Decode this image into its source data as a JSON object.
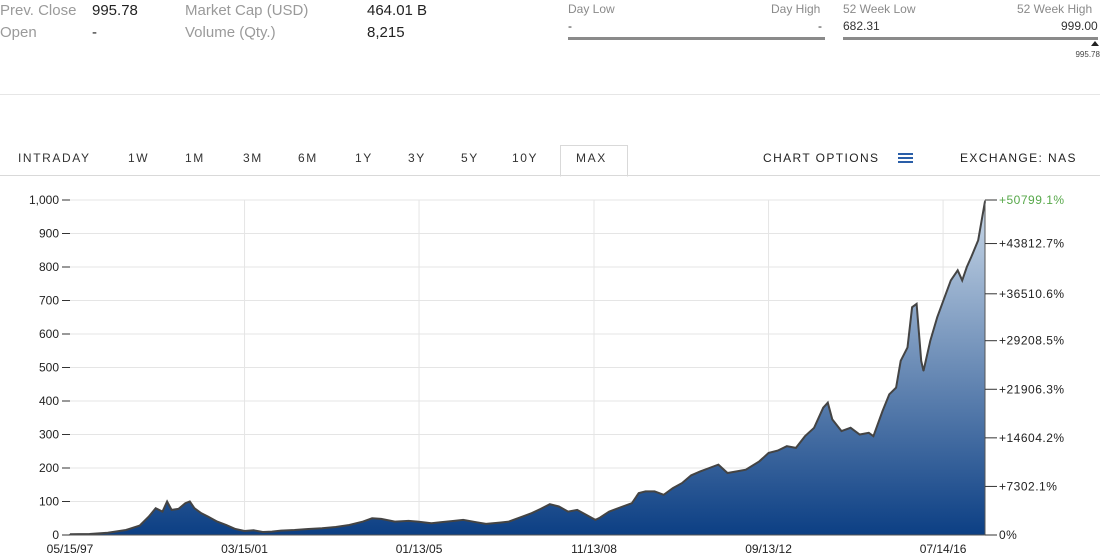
{
  "quote": {
    "prev_close_label": "Prev. Close",
    "prev_close_value": "995.78",
    "open_label": "Open",
    "open_value": "-",
    "market_cap_label": "Market Cap (USD)",
    "market_cap_value": "464.01 B",
    "volume_label": "Volume (Qty.)",
    "volume_value": "8,215"
  },
  "day_range": {
    "low_label": "Day Low",
    "high_label": "Day High",
    "low_value": "-",
    "high_value": "-"
  },
  "week52_range": {
    "low_label": "52 Week Low",
    "high_label": "52 Week High",
    "low_value": "682.31",
    "high_value": "999.00",
    "marker_value": "995.78",
    "marker_fraction": 0.9901
  },
  "tabs": [
    "INTRADAY",
    "1W",
    "1M",
    "3M",
    "6M",
    "1Y",
    "3Y",
    "5Y",
    "10Y",
    "MAX"
  ],
  "active_tab": "MAX",
  "chart_options_label": "CHART OPTIONS",
  "exchange_label": "EXCHANGE: NAS",
  "colors": {
    "area_top": "#c9d8e8",
    "area_bottom": "#0c3f84",
    "line": "#444444",
    "pct_highlight": "#57a84a",
    "grid": "#e5e5e5"
  },
  "chart_data": {
    "type": "area",
    "title": "",
    "xlabel": "",
    "ylabel": "",
    "x_tick_labels": [
      "05/15/97",
      "03/15/01",
      "01/13/05",
      "11/13/08",
      "09/13/12",
      "07/14/16"
    ],
    "x_ticks_years": [
      1997.37,
      2001.2,
      2005.03,
      2008.87,
      2012.7,
      2016.53
    ],
    "y_ticks": [
      0,
      100,
      200,
      300,
      400,
      500,
      600,
      700,
      800,
      900,
      1000
    ],
    "y_tick_labels": [
      "0",
      "100",
      "200",
      "300",
      "400",
      "500",
      "600",
      "700",
      "800",
      "900",
      "1,000"
    ],
    "ylim": [
      0,
      1000
    ],
    "xlim_years": [
      1997.37,
      2017.45
    ],
    "right_axis_labels": [
      {
        "label": "+50799.1%",
        "price": 1000
      },
      {
        "label": "+43812.7%",
        "price": 870
      },
      {
        "label": "+36510.6%",
        "price": 720
      },
      {
        "label": "+29208.5%",
        "price": 580
      },
      {
        "label": "+21906.3%",
        "price": 435
      },
      {
        "label": "+14604.2%",
        "price": 290
      },
      {
        "label": "+7302.1%",
        "price": 145
      },
      {
        "label": "0%",
        "price": 0
      }
    ],
    "grid": "vertical lines at x ticks and horizontal lines at y ticks",
    "series": [
      {
        "values": [
          [
            1997.37,
            2
          ],
          [
            1997.8,
            3
          ],
          [
            1998.2,
            7
          ],
          [
            1998.6,
            15
          ],
          [
            1998.9,
            28
          ],
          [
            1999.1,
            55
          ],
          [
            1999.25,
            80
          ],
          [
            1999.4,
            70
          ],
          [
            1999.5,
            100
          ],
          [
            1999.6,
            75
          ],
          [
            1999.75,
            78
          ],
          [
            1999.9,
            95
          ],
          [
            2000.0,
            100
          ],
          [
            2000.1,
            80
          ],
          [
            2000.25,
            65
          ],
          [
            2000.4,
            55
          ],
          [
            2000.6,
            40
          ],
          [
            2000.8,
            30
          ],
          [
            2001.0,
            18
          ],
          [
            2001.2,
            12
          ],
          [
            2001.4,
            14
          ],
          [
            2001.6,
            9
          ],
          [
            2001.8,
            10
          ],
          [
            2002.0,
            13
          ],
          [
            2002.3,
            15
          ],
          [
            2002.6,
            18
          ],
          [
            2002.9,
            20
          ],
          [
            2003.2,
            24
          ],
          [
            2003.5,
            30
          ],
          [
            2003.8,
            40
          ],
          [
            2004.0,
            50
          ],
          [
            2004.2,
            48
          ],
          [
            2004.5,
            40
          ],
          [
            2004.8,
            42
          ],
          [
            2005.0,
            40
          ],
          [
            2005.3,
            35
          ],
          [
            2005.5,
            38
          ],
          [
            2005.8,
            42
          ],
          [
            2006.0,
            45
          ],
          [
            2006.3,
            38
          ],
          [
            2006.5,
            33
          ],
          [
            2006.8,
            37
          ],
          [
            2007.0,
            40
          ],
          [
            2007.3,
            55
          ],
          [
            2007.5,
            65
          ],
          [
            2007.7,
            78
          ],
          [
            2007.9,
            92
          ],
          [
            2008.1,
            85
          ],
          [
            2008.3,
            70
          ],
          [
            2008.5,
            75
          ],
          [
            2008.7,
            60
          ],
          [
            2008.9,
            45
          ],
          [
            2009.0,
            52
          ],
          [
            2009.2,
            70
          ],
          [
            2009.5,
            85
          ],
          [
            2009.7,
            95
          ],
          [
            2009.85,
            125
          ],
          [
            2010.0,
            130
          ],
          [
            2010.2,
            130
          ],
          [
            2010.4,
            120
          ],
          [
            2010.6,
            140
          ],
          [
            2010.8,
            155
          ],
          [
            2011.0,
            178
          ],
          [
            2011.2,
            190
          ],
          [
            2011.4,
            200
          ],
          [
            2011.6,
            210
          ],
          [
            2011.8,
            185
          ],
          [
            2012.0,
            190
          ],
          [
            2012.2,
            195
          ],
          [
            2012.5,
            220
          ],
          [
            2012.7,
            245
          ],
          [
            2012.9,
            252
          ],
          [
            2013.1,
            265
          ],
          [
            2013.3,
            260
          ],
          [
            2013.5,
            295
          ],
          [
            2013.7,
            320
          ],
          [
            2013.9,
            380
          ],
          [
            2014.0,
            395
          ],
          [
            2014.1,
            345
          ],
          [
            2014.3,
            310
          ],
          [
            2014.5,
            320
          ],
          [
            2014.7,
            300
          ],
          [
            2014.9,
            305
          ],
          [
            2015.0,
            295
          ],
          [
            2015.2,
            370
          ],
          [
            2015.35,
            420
          ],
          [
            2015.5,
            440
          ],
          [
            2015.6,
            520
          ],
          [
            2015.75,
            560
          ],
          [
            2015.85,
            680
          ],
          [
            2015.95,
            690
          ],
          [
            2016.05,
            520
          ],
          [
            2016.1,
            490
          ],
          [
            2016.25,
            580
          ],
          [
            2016.4,
            650
          ],
          [
            2016.55,
            705
          ],
          [
            2016.7,
            760
          ],
          [
            2016.85,
            790
          ],
          [
            2016.95,
            760
          ],
          [
            2017.05,
            800
          ],
          [
            2017.15,
            830
          ],
          [
            2017.3,
            880
          ],
          [
            2017.45,
            996
          ]
        ]
      }
    ]
  }
}
